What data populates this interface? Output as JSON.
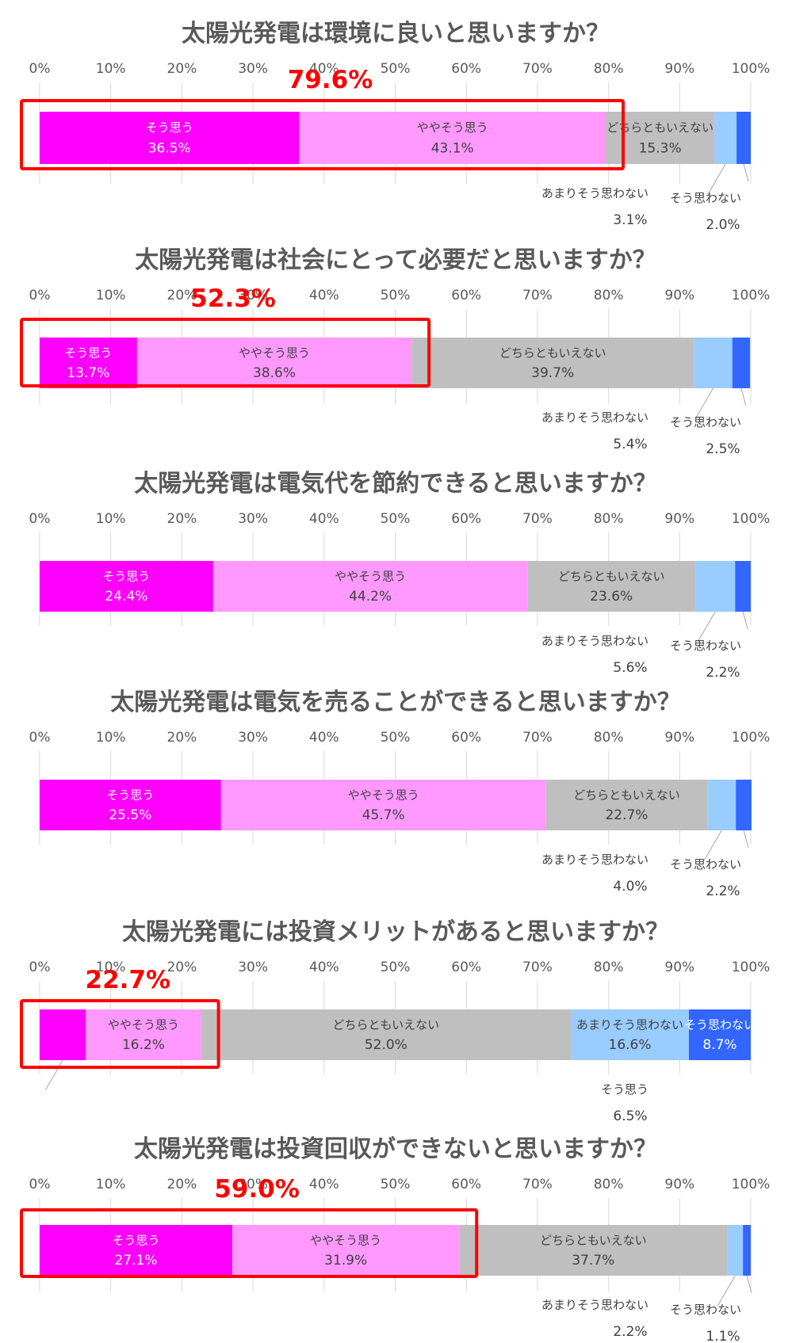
{
  "chart_data": [
    {
      "type": "bar",
      "title": "太陽光発電は環境に良いと思いますか？",
      "ticks": [
        "0%",
        "10%",
        "20%",
        "30%",
        "40%",
        "50%",
        "60%",
        "70%",
        "80%",
        "90%",
        "100%"
      ],
      "categories": [
        "そう思う",
        "ややそう思う",
        "どちらともいえない",
        "あまりそう思わない",
        "そう思わない"
      ],
      "values": [
        36.5,
        43.1,
        15.3,
        3.1,
        2.0
      ],
      "value_labels": [
        "36.5%",
        "43.1%",
        "15.3%",
        "3.1%",
        "2.0%"
      ],
      "highlight": {
        "label": "79.6%",
        "value": 79.6
      }
    },
    {
      "type": "bar",
      "title": "太陽光発電は社会にとって必要だと思いますか？",
      "ticks": [
        "0%",
        "10%",
        "20%",
        "30%",
        "40%",
        "50%",
        "60%",
        "70%",
        "80%",
        "90%",
        "100%"
      ],
      "categories": [
        "そう思う",
        "ややそう思う",
        "どちらともいえない",
        "あまりそう思わない",
        "そう思わない"
      ],
      "values": [
        13.7,
        38.6,
        39.7,
        5.4,
        2.5
      ],
      "value_labels": [
        "13.7%",
        "38.6%",
        "39.7%",
        "5.4%",
        "2.5%"
      ],
      "highlight": {
        "label": "52.3%",
        "value": 52.3
      }
    },
    {
      "type": "bar",
      "title": "太陽光発電は電気代を節約できると思いますか？",
      "ticks": [
        "0%",
        "10%",
        "20%",
        "30%",
        "40%",
        "50%",
        "60%",
        "70%",
        "80%",
        "90%",
        "100%"
      ],
      "categories": [
        "そう思う",
        "ややそう思う",
        "どちらともいえない",
        "あまりそう思わない",
        "そう思わない"
      ],
      "values": [
        24.4,
        44.2,
        23.6,
        5.6,
        2.2
      ],
      "value_labels": [
        "24.4%",
        "44.2%",
        "23.6%",
        "5.6%",
        "2.2%"
      ]
    },
    {
      "type": "bar",
      "title": "太陽光発電は電気を売ることができると思いますか？",
      "ticks": [
        "0%",
        "10%",
        "20%",
        "30%",
        "40%",
        "50%",
        "60%",
        "70%",
        "80%",
        "90%",
        "100%"
      ],
      "categories": [
        "そう思う",
        "ややそう思う",
        "どちらともいえない",
        "あまりそう思わない",
        "そう思わない"
      ],
      "values": [
        25.5,
        45.7,
        22.7,
        4.0,
        2.2
      ],
      "value_labels": [
        "25.5%",
        "45.7%",
        "22.7%",
        "4.0%",
        "2.2%"
      ]
    },
    {
      "type": "bar",
      "title": "太陽光発電には投資メリットがあると思いますか？",
      "ticks": [
        "0%",
        "10%",
        "20%",
        "30%",
        "40%",
        "50%",
        "60%",
        "70%",
        "80%",
        "90%",
        "100%"
      ],
      "categories": [
        "そう思う",
        "ややそう思う",
        "どちらともいえない",
        "あまりそう思わない",
        "そう思わない"
      ],
      "values": [
        6.5,
        16.2,
        52.0,
        16.6,
        8.7
      ],
      "value_labels": [
        "6.5%",
        "16.2%",
        "52.0%",
        "16.6%",
        "8.7%"
      ],
      "highlight": {
        "label": "22.7%",
        "value": 22.7
      }
    },
    {
      "type": "bar",
      "title": "太陽光発電は投資回収ができないと思いますか？",
      "ticks": [
        "0%",
        "10%",
        "20%",
        "30%",
        "40%",
        "50%",
        "60%",
        "70%",
        "80%",
        "90%",
        "100%"
      ],
      "categories": [
        "そう思う",
        "ややそう思う",
        "どちらともいえない",
        "あまりそう思わない",
        "そう思わない"
      ],
      "values": [
        27.1,
        31.9,
        37.7,
        2.2,
        1.1
      ],
      "value_labels": [
        "27.1%",
        "31.9%",
        "37.7%",
        "2.2%",
        "1.1%"
      ],
      "highlight": {
        "label": "59.0%",
        "value": 59.0
      }
    }
  ],
  "colors": {
    "segments": [
      "#ff00ff",
      "#ff99ff",
      "#bfbfbf",
      "#99ccff",
      "#3366ff"
    ],
    "segment_text": [
      "#ffffff",
      "#404040",
      "#404040",
      "#404040",
      "#ffffff"
    ],
    "highlight": "#ff0000",
    "title": "#595959",
    "axis_text": "#595959",
    "grid": "#d9d9d9"
  }
}
